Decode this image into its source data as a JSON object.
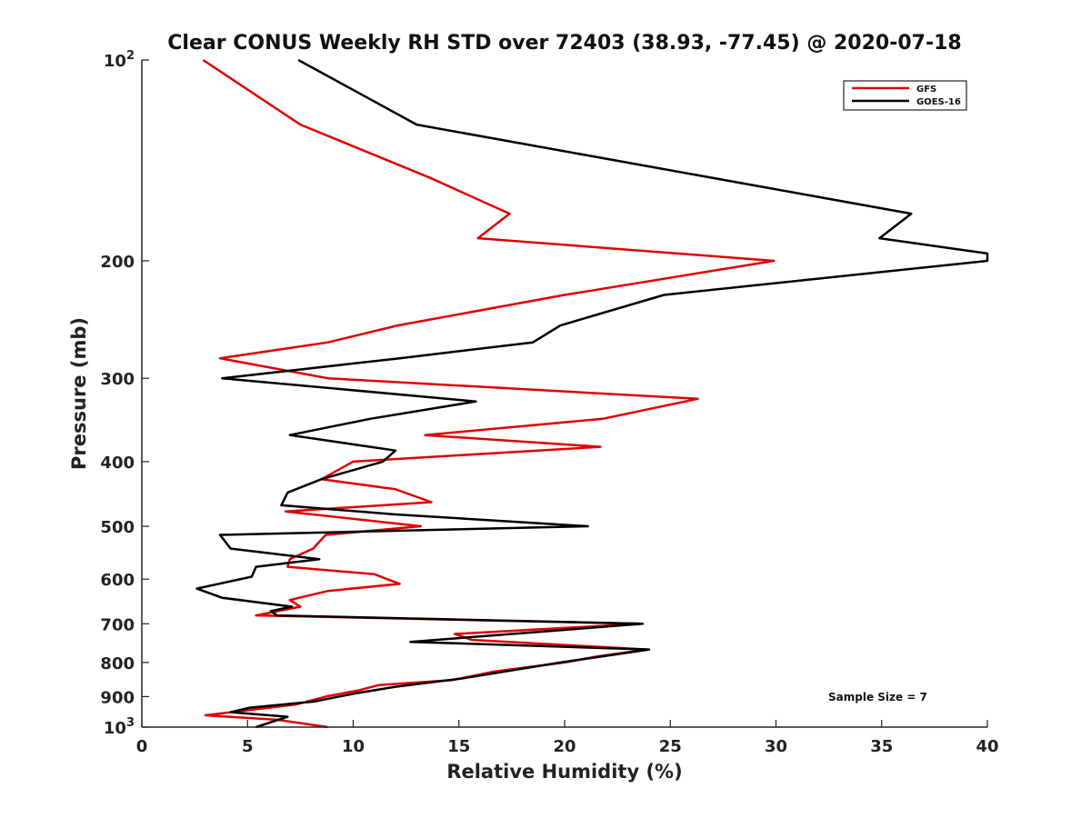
{
  "chart_data": {
    "type": "line",
    "title": "Clear CONUS Weekly RH STD over 72403 (38.93, -77.45) @ 2020-07-18",
    "xlabel": "Relative Humidity (%)",
    "ylabel": "Pressure (mb)",
    "xlim": [
      0,
      40
    ],
    "ylim": [
      100,
      1000
    ],
    "y_scale": "log",
    "y_reversed": true,
    "grid": false,
    "legend_position": "top-right",
    "annotation": "Sample Size = 7",
    "x_ticks": [
      "0",
      "5",
      "10",
      "15",
      "20",
      "25",
      "30",
      "35",
      "40"
    ],
    "y_ticks": [
      {
        "value": 100,
        "base": "10",
        "exp": "2"
      },
      {
        "value": 200,
        "base": "200",
        "exp": ""
      },
      {
        "value": 300,
        "base": "300",
        "exp": ""
      },
      {
        "value": 400,
        "base": "400",
        "exp": ""
      },
      {
        "value": 500,
        "base": "500",
        "exp": ""
      },
      {
        "value": 600,
        "base": "600",
        "exp": ""
      },
      {
        "value": 700,
        "base": "700",
        "exp": ""
      },
      {
        "value": 800,
        "base": "800",
        "exp": ""
      },
      {
        "value": 900,
        "base": "900",
        "exp": ""
      },
      {
        "value": 1000,
        "base": "10",
        "exp": "3"
      }
    ],
    "series": [
      {
        "name": "GFS",
        "color": "#e00000",
        "points": [
          [
            2.9,
            100
          ],
          [
            7.5,
            125
          ],
          [
            13.6,
            150
          ],
          [
            17.4,
            170
          ],
          [
            15.9,
            185
          ],
          [
            29.9,
            200
          ],
          [
            20.0,
            225
          ],
          [
            12.1,
            250
          ],
          [
            8.8,
            265
          ],
          [
            3.7,
            280
          ],
          [
            8.8,
            300
          ],
          [
            26.3,
            322
          ],
          [
            21.8,
            345
          ],
          [
            13.4,
            365
          ],
          [
            21.7,
            380
          ],
          [
            10.0,
            400
          ],
          [
            8.5,
            425
          ],
          [
            12.0,
            440
          ],
          [
            13.7,
            460
          ],
          [
            6.8,
            475
          ],
          [
            13.2,
            500
          ],
          [
            8.7,
            515
          ],
          [
            8.1,
            540
          ],
          [
            7.0,
            560
          ],
          [
            6.9,
            575
          ],
          [
            11.0,
            590
          ],
          [
            12.2,
            610
          ],
          [
            8.8,
            625
          ],
          [
            7.0,
            645
          ],
          [
            7.5,
            660
          ],
          [
            5.4,
            680
          ],
          [
            23.6,
            700
          ],
          [
            14.8,
            725
          ],
          [
            15.6,
            740
          ],
          [
            23.9,
            765
          ],
          [
            21.4,
            785
          ],
          [
            20.0,
            800
          ],
          [
            16.7,
            825
          ],
          [
            14.7,
            850
          ],
          [
            11.2,
            865
          ],
          [
            10.3,
            880
          ],
          [
            8.7,
            900
          ],
          [
            7.3,
            925
          ],
          [
            3.0,
            960
          ],
          [
            6.4,
            975
          ],
          [
            8.8,
            1000
          ]
        ]
      },
      {
        "name": "GOES-16",
        "color": "#000000",
        "points": [
          [
            7.4,
            100
          ],
          [
            13.0,
            125
          ],
          [
            36.4,
            170
          ],
          [
            34.9,
            185
          ],
          [
            40.0,
            195
          ],
          [
            40.0,
            200
          ],
          [
            24.7,
            225
          ],
          [
            19.8,
            250
          ],
          [
            18.5,
            265
          ],
          [
            12.2,
            280
          ],
          [
            3.8,
            300
          ],
          [
            15.8,
            325
          ],
          [
            10.8,
            345
          ],
          [
            7.0,
            365
          ],
          [
            12.0,
            385
          ],
          [
            11.4,
            400
          ],
          [
            8.5,
            425
          ],
          [
            6.9,
            445
          ],
          [
            6.6,
            465
          ],
          [
            12.0,
            480
          ],
          [
            21.1,
            500
          ],
          [
            3.7,
            515
          ],
          [
            4.2,
            540
          ],
          [
            8.4,
            560
          ],
          [
            5.4,
            575
          ],
          [
            5.2,
            595
          ],
          [
            2.6,
            620
          ],
          [
            3.8,
            640
          ],
          [
            7.1,
            660
          ],
          [
            6.1,
            670
          ],
          [
            6.4,
            680
          ],
          [
            23.7,
            700
          ],
          [
            12.7,
            745
          ],
          [
            24.0,
            765
          ],
          [
            19.8,
            800
          ],
          [
            15.2,
            845
          ],
          [
            12.0,
            870
          ],
          [
            10.1,
            890
          ],
          [
            8.2,
            915
          ],
          [
            5.1,
            935
          ],
          [
            4.2,
            950
          ],
          [
            6.9,
            965
          ],
          [
            5.4,
            1000
          ]
        ]
      }
    ]
  }
}
